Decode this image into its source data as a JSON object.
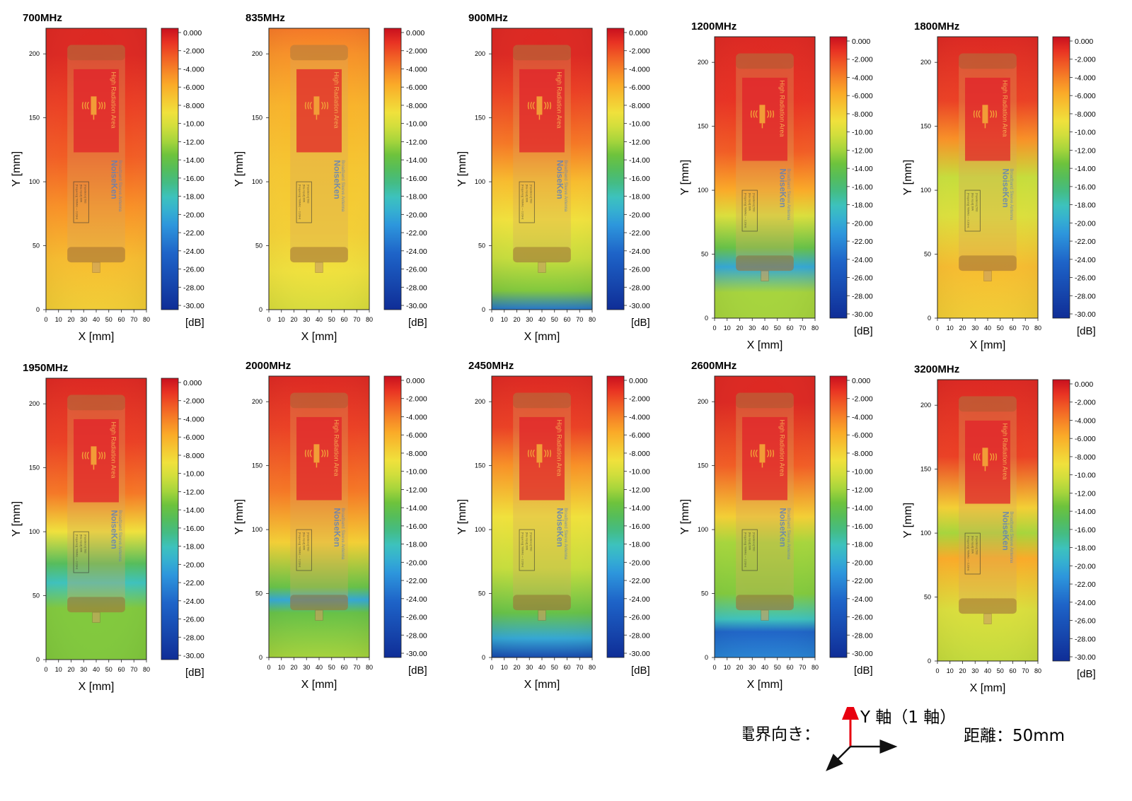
{
  "figure": {
    "axis_x_label": "X [mm]",
    "axis_y_label": "Y [mm]",
    "colorbar_unit": "[dB]",
    "colorbar_ticks": [
      "0.000",
      "-2.000",
      "-4.000",
      "-6.000",
      "-8.000",
      "-10.00",
      "-12.00",
      "-14.00",
      "-16.00",
      "-18.00",
      "-20.00",
      "-22.00",
      "-24.00",
      "-26.00",
      "-28.00",
      "-30.00"
    ],
    "x_ticks": [
      "0",
      "10",
      "20",
      "30",
      "40",
      "50",
      "60",
      "70",
      "80"
    ],
    "y_ticks": [
      "0",
      "50",
      "100",
      "150",
      "200"
    ],
    "antenna": {
      "warning_text": "High Radiation Area",
      "brand": "NoiseKen",
      "product": "Broadband Sleeve Antenna",
      "spec_lines": [
        "[Frequency] 700MHz — 3.2GHz",
        "[Max Input] 30W",
        "[Impedance] 50Ω"
      ]
    }
  },
  "chart_data": [
    {
      "type": "heatmap",
      "title": "700MHz",
      "xlim": [
        0,
        80
      ],
      "ylim": [
        0,
        220
      ],
      "clim": [
        -30,
        0
      ],
      "y_profile": [
        [
          0,
          -8
        ],
        [
          40,
          -7
        ],
        [
          80,
          -5
        ],
        [
          120,
          -3
        ],
        [
          160,
          -2
        ],
        [
          200,
          -1
        ],
        [
          220,
          -1
        ]
      ]
    },
    {
      "type": "heatmap",
      "title": "835MHz",
      "xlim": [
        0,
        80
      ],
      "ylim": [
        0,
        220
      ],
      "clim": [
        -30,
        0
      ],
      "y_profile": [
        [
          0,
          -10
        ],
        [
          30,
          -9
        ],
        [
          60,
          -8
        ],
        [
          110,
          -7.5
        ],
        [
          160,
          -6.5
        ],
        [
          200,
          -5
        ],
        [
          220,
          -4
        ]
      ]
    },
    {
      "type": "heatmap",
      "title": "900MHz",
      "xlim": [
        0,
        80
      ],
      "ylim": [
        0,
        220
      ],
      "clim": [
        -30,
        0
      ],
      "y_profile": [
        [
          0,
          -23
        ],
        [
          15,
          -13
        ],
        [
          40,
          -11
        ],
        [
          70,
          -9
        ],
        [
          100,
          -7
        ],
        [
          130,
          -4
        ],
        [
          170,
          -2
        ],
        [
          200,
          -1
        ],
        [
          220,
          -1
        ]
      ]
    },
    {
      "type": "heatmap",
      "title": "1200MHz",
      "xlim": [
        0,
        80
      ],
      "ylim": [
        0,
        220
      ],
      "clim": [
        -30,
        0
      ],
      "y_profile": [
        [
          0,
          -12
        ],
        [
          20,
          -12
        ],
        [
          40,
          -20
        ],
        [
          55,
          -14
        ],
        [
          80,
          -10
        ],
        [
          100,
          -6
        ],
        [
          130,
          -3
        ],
        [
          170,
          -1.5
        ],
        [
          220,
          -1
        ]
      ]
    },
    {
      "type": "heatmap",
      "title": "1800MHz",
      "xlim": [
        0,
        80
      ],
      "ylim": [
        0,
        220
      ],
      "clim": [
        -30,
        0
      ],
      "y_profile": [
        [
          0,
          -8
        ],
        [
          40,
          -7
        ],
        [
          80,
          -10
        ],
        [
          110,
          -11
        ],
        [
          140,
          -5
        ],
        [
          170,
          -2
        ],
        [
          220,
          -1
        ]
      ]
    },
    {
      "type": "heatmap",
      "title": "1950MHz",
      "xlim": [
        0,
        80
      ],
      "ylim": [
        0,
        220
      ],
      "clim": [
        -30,
        0
      ],
      "y_profile": [
        [
          0,
          -13
        ],
        [
          40,
          -13
        ],
        [
          60,
          -18
        ],
        [
          75,
          -15
        ],
        [
          100,
          -9
        ],
        [
          130,
          -4
        ],
        [
          170,
          -2
        ],
        [
          220,
          -1
        ]
      ]
    },
    {
      "type": "heatmap",
      "title": "2000MHz",
      "xlim": [
        0,
        80
      ],
      "ylim": [
        0,
        220
      ],
      "clim": [
        -30,
        0
      ],
      "y_profile": [
        [
          0,
          -12
        ],
        [
          35,
          -14
        ],
        [
          45,
          -20
        ],
        [
          55,
          -14
        ],
        [
          90,
          -8
        ],
        [
          130,
          -4
        ],
        [
          180,
          -2
        ],
        [
          220,
          -1
        ]
      ]
    },
    {
      "type": "heatmap",
      "title": "2450MHz",
      "xlim": [
        0,
        80
      ],
      "ylim": [
        0,
        220
      ],
      "clim": [
        -30,
        0
      ],
      "y_profile": [
        [
          0,
          -27
        ],
        [
          15,
          -20
        ],
        [
          35,
          -14
        ],
        [
          70,
          -11
        ],
        [
          110,
          -9
        ],
        [
          150,
          -5
        ],
        [
          180,
          -2
        ],
        [
          220,
          -1
        ]
      ]
    },
    {
      "type": "heatmap",
      "title": "2600MHz",
      "xlim": [
        0,
        80
      ],
      "ylim": [
        0,
        220
      ],
      "clim": [
        -30,
        0
      ],
      "y_profile": [
        [
          0,
          -22
        ],
        [
          20,
          -24
        ],
        [
          30,
          -18
        ],
        [
          50,
          -13
        ],
        [
          90,
          -12
        ],
        [
          110,
          -8
        ],
        [
          150,
          -3
        ],
        [
          200,
          -1
        ],
        [
          220,
          -1
        ]
      ]
    },
    {
      "type": "heatmap",
      "title": "3200MHz",
      "xlim": [
        0,
        80
      ],
      "ylim": [
        0,
        220
      ],
      "clim": [
        -30,
        0
      ],
      "y_profile": [
        [
          0,
          -11
        ],
        [
          40,
          -10
        ],
        [
          80,
          -6
        ],
        [
          100,
          -12
        ],
        [
          120,
          -8
        ],
        [
          160,
          -2
        ],
        [
          220,
          -1
        ]
      ]
    }
  ],
  "legend": {
    "field_label": "電界向き：",
    "axis_label": "Y 軸（1 軸）",
    "distance_label": "距離：50mm",
    "arrow_color": "#e8000f"
  }
}
